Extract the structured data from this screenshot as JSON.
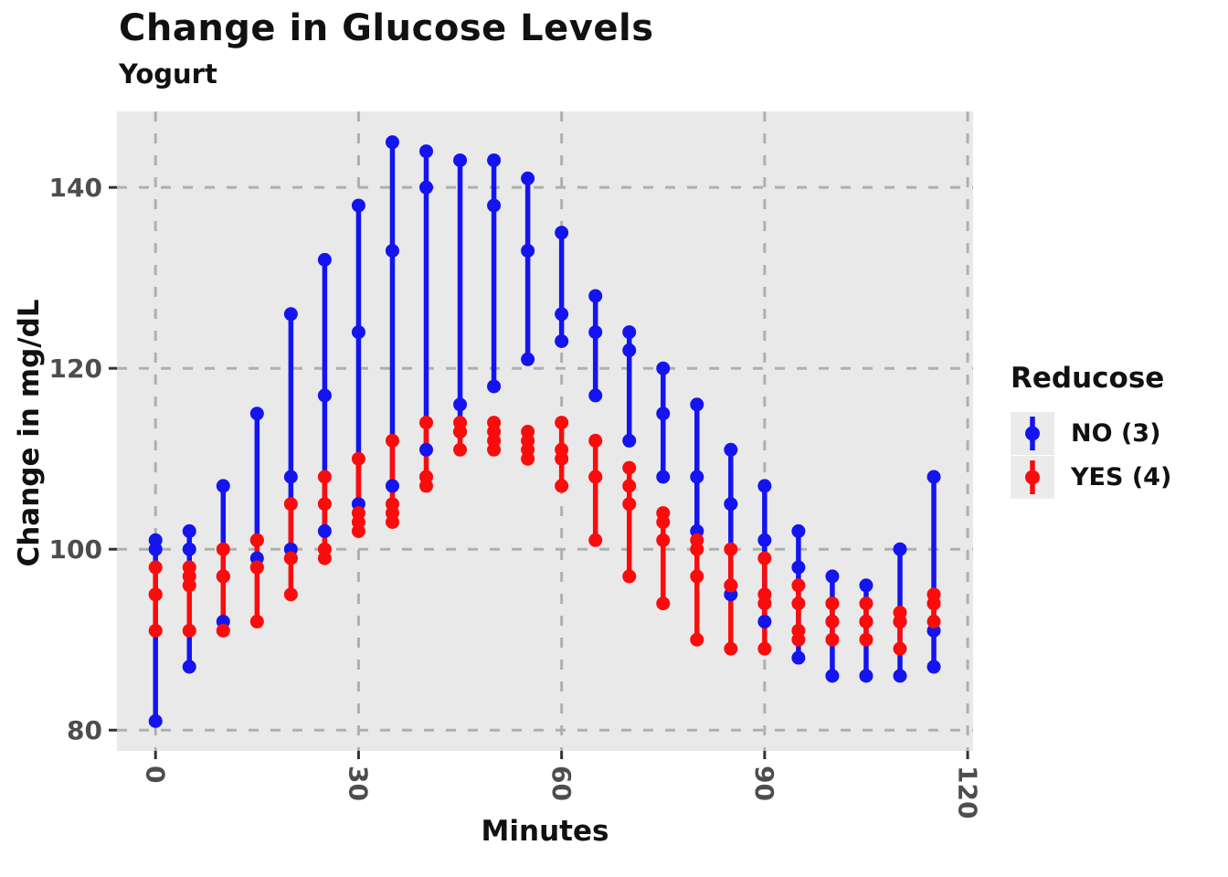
{
  "header": {
    "title": "Change in Glucose Levels",
    "subtitle": "Yogurt"
  },
  "chart_data": {
    "type": "scatter",
    "title": "Change in Glucose Levels",
    "subtitle": "Yogurt",
    "xlabel": "Minutes",
    "ylabel": "Change in mg/dL",
    "legend_title": "Reducose",
    "legend_position": "right",
    "grid": "dashed",
    "panel_bg": "#E9E9E9",
    "grid_color": "#AFAFAF",
    "tick_label_color": "#4D4D4D",
    "x_ticks": [
      0,
      30,
      60,
      90,
      120
    ],
    "y_ticks": [
      80,
      100,
      120,
      140
    ],
    "xlim": [
      -5.7,
      120.8
    ],
    "ylim": [
      77.7,
      148.4
    ],
    "x": [
      0,
      5,
      10,
      15,
      20,
      25,
      30,
      35,
      40,
      45,
      50,
      55,
      60,
      65,
      70,
      75,
      80,
      85,
      90,
      95,
      100,
      105,
      110,
      115
    ],
    "series": [
      {
        "name": "NO (3)",
        "color": "#1414F0",
        "points": [
          [
            101,
            100,
            81
          ],
          [
            102,
            100,
            87
          ],
          [
            107,
            97,
            92
          ],
          [
            115,
            101,
            99
          ],
          [
            126,
            108,
            100
          ],
          [
            132,
            117,
            102
          ],
          [
            138,
            124,
            105
          ],
          [
            145,
            133,
            107
          ],
          [
            144,
            140,
            111
          ],
          [
            143,
            116,
            113
          ],
          [
            143,
            138,
            118
          ],
          [
            141,
            133,
            121
          ],
          [
            135,
            126,
            123
          ],
          [
            128,
            124,
            117
          ],
          [
            124,
            122,
            112
          ],
          [
            120,
            115,
            108
          ],
          [
            116,
            108,
            102
          ],
          [
            111,
            105,
            95
          ],
          [
            107,
            101,
            92
          ],
          [
            102,
            98,
            88
          ],
          [
            97,
            92,
            86
          ],
          [
            96,
            92,
            86
          ],
          [
            100,
            92,
            86
          ],
          [
            108,
            91,
            87
          ]
        ]
      },
      {
        "name": "YES (4)",
        "color": "#FA0C0C",
        "points": [
          [
            98,
            95,
            95,
            91
          ],
          [
            98,
            97,
            96,
            91
          ],
          [
            100,
            97,
            97,
            91
          ],
          [
            101,
            98,
            98,
            92
          ],
          [
            105,
            99,
            99,
            95
          ],
          [
            108,
            105,
            100,
            99
          ],
          [
            110,
            104,
            103,
            102
          ],
          [
            112,
            105,
            104,
            103
          ],
          [
            114,
            108,
            108,
            107
          ],
          [
            114,
            113,
            113,
            111
          ],
          [
            114,
            113,
            112,
            111
          ],
          [
            113,
            112,
            111,
            110
          ],
          [
            114,
            111,
            110,
            107
          ],
          [
            112,
            108,
            108,
            101
          ],
          [
            109,
            107,
            105,
            97
          ],
          [
            104,
            103,
            101,
            94
          ],
          [
            101,
            100,
            97,
            90
          ],
          [
            100,
            96,
            96,
            89
          ],
          [
            99,
            95,
            94,
            89
          ],
          [
            96,
            94,
            91,
            90
          ],
          [
            94,
            94,
            92,
            90
          ],
          [
            94,
            92,
            92,
            90
          ],
          [
            93,
            92,
            92,
            89
          ],
          [
            95,
            94,
            94,
            92
          ]
        ]
      }
    ]
  }
}
